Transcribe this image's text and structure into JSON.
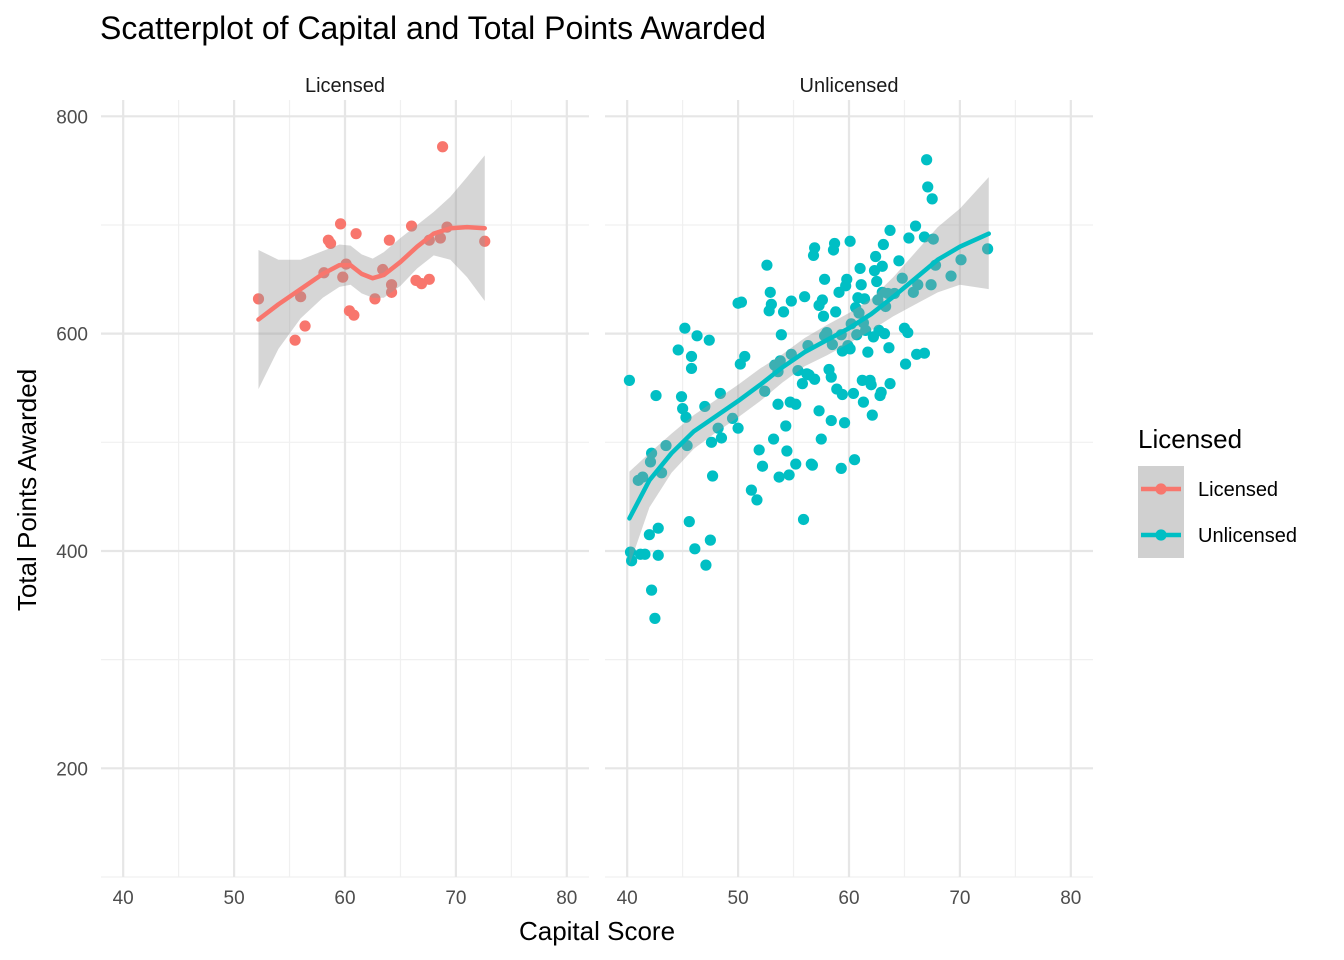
{
  "chart_data": {
    "type": "scatter",
    "title": "Scatterplot of Capital and Total Points Awarded",
    "xlabel": "Capital Score",
    "ylabel": "Total Points Awarded",
    "xlim": [
      38,
      82
    ],
    "ylim": [
      100,
      815
    ],
    "x_ticks": [
      40,
      50,
      60,
      70,
      80
    ],
    "y_ticks": [
      200,
      400,
      600,
      800
    ],
    "grid": true,
    "legend": {
      "title": "Licensed",
      "position": "right",
      "entries": [
        {
          "label": "Licensed",
          "color": "#F8766D"
        },
        {
          "label": "Unlicensed",
          "color": "#00BFC4"
        }
      ]
    },
    "facets": [
      {
        "label": "Licensed",
        "color": "#F8766D",
        "points": [
          [
            52.2,
            632
          ],
          [
            55.5,
            594
          ],
          [
            56.0,
            634
          ],
          [
            56.4,
            607
          ],
          [
            58.1,
            656
          ],
          [
            58.5,
            686
          ],
          [
            58.7,
            683
          ],
          [
            59.6,
            701
          ],
          [
            59.8,
            652
          ],
          [
            60.1,
            664
          ],
          [
            60.4,
            621
          ],
          [
            60.8,
            617
          ],
          [
            61.0,
            692
          ],
          [
            62.7,
            632
          ],
          [
            63.4,
            659
          ],
          [
            64.0,
            686
          ],
          [
            64.2,
            645
          ],
          [
            64.2,
            638
          ],
          [
            66.0,
            699
          ],
          [
            66.4,
            649
          ],
          [
            66.9,
            646
          ],
          [
            67.6,
            650
          ],
          [
            67.6,
            686
          ],
          [
            68.6,
            688
          ],
          [
            68.8,
            772
          ],
          [
            69.2,
            698
          ],
          [
            72.6,
            685
          ]
        ],
        "smooth": [
          [
            52.2,
            613
          ],
          [
            54,
            627
          ],
          [
            56,
            641
          ],
          [
            58,
            655
          ],
          [
            59.5,
            663
          ],
          [
            60.5,
            663
          ],
          [
            61.5,
            655
          ],
          [
            62.5,
            651
          ],
          [
            63.5,
            654
          ],
          [
            65,
            666
          ],
          [
            66.5,
            680
          ],
          [
            68,
            692
          ],
          [
            69.5,
            697
          ],
          [
            71,
            698
          ],
          [
            72.6,
            697
          ]
        ],
        "ci_upper": [
          [
            52.2,
            677
          ],
          [
            54,
            668
          ],
          [
            56,
            668
          ],
          [
            58,
            676
          ],
          [
            59.5,
            682
          ],
          [
            60.5,
            681
          ],
          [
            61.5,
            673
          ],
          [
            62.5,
            669
          ],
          [
            63.5,
            675
          ],
          [
            65,
            688
          ],
          [
            66.5,
            700
          ],
          [
            68,
            712
          ],
          [
            69.5,
            726
          ],
          [
            71,
            744
          ],
          [
            72.6,
            764
          ]
        ],
        "ci_lower": [
          [
            52.2,
            549
          ],
          [
            54,
            586
          ],
          [
            56,
            614
          ],
          [
            58,
            633
          ],
          [
            59.5,
            643
          ],
          [
            60.5,
            645
          ],
          [
            61.5,
            637
          ],
          [
            62.5,
            633
          ],
          [
            63.5,
            633
          ],
          [
            65,
            644
          ],
          [
            66.5,
            660
          ],
          [
            68,
            672
          ],
          [
            69.5,
            668
          ],
          [
            71,
            652
          ],
          [
            72.6,
            630
          ]
        ]
      },
      {
        "label": "Unlicensed",
        "color": "#00BFC4",
        "points": [
          [
            40.2,
            557
          ],
          [
            40.3,
            399
          ],
          [
            40.4,
            391
          ],
          [
            41,
            465
          ],
          [
            41.2,
            397
          ],
          [
            41.6,
            397
          ],
          [
            41.4,
            468
          ],
          [
            42,
            415
          ],
          [
            42.1,
            482
          ],
          [
            42.2,
            490
          ],
          [
            42.2,
            364
          ],
          [
            42.5,
            338
          ],
          [
            42.6,
            543
          ],
          [
            42.8,
            421
          ],
          [
            42.8,
            396
          ],
          [
            43.1,
            472
          ],
          [
            43.5,
            497
          ],
          [
            44.6,
            585
          ],
          [
            44.9,
            542
          ],
          [
            45.0,
            531
          ],
          [
            45.2,
            605
          ],
          [
            45.3,
            523
          ],
          [
            45.4,
            497
          ],
          [
            45.6,
            427
          ],
          [
            45.8,
            579
          ],
          [
            45.8,
            568
          ],
          [
            46.1,
            402
          ],
          [
            46.3,
            598
          ],
          [
            47.0,
            533
          ],
          [
            47.1,
            387
          ],
          [
            47.4,
            594
          ],
          [
            47.5,
            410
          ],
          [
            47.6,
            500
          ],
          [
            47.7,
            469
          ],
          [
            48.2,
            513
          ],
          [
            48.4,
            545
          ],
          [
            48.5,
            504
          ],
          [
            49.5,
            522
          ],
          [
            50.0,
            513
          ],
          [
            50.2,
            572
          ],
          [
            50.3,
            629
          ],
          [
            50.6,
            579
          ],
          [
            51.2,
            456
          ],
          [
            51.7,
            447
          ],
          [
            51.9,
            493
          ],
          [
            52.2,
            478
          ],
          [
            52.4,
            547
          ],
          [
            52.6,
            663
          ],
          [
            52.8,
            621
          ],
          [
            52.9,
            638
          ],
          [
            53.0,
            627
          ],
          [
            53.2,
            503
          ],
          [
            53.3,
            571
          ],
          [
            53.6,
            565
          ],
          [
            53.6,
            535
          ],
          [
            53.7,
            468
          ],
          [
            53.8,
            575
          ],
          [
            53.9,
            599
          ],
          [
            54.1,
            620
          ],
          [
            54.3,
            515
          ],
          [
            54.4,
            492
          ],
          [
            54.6,
            470
          ],
          [
            54.7,
            537
          ],
          [
            54.8,
            630
          ],
          [
            54.8,
            581
          ],
          [
            55.2,
            535
          ],
          [
            55.4,
            566
          ],
          [
            55.8,
            554
          ],
          [
            55.9,
            429
          ],
          [
            56.0,
            634
          ],
          [
            56.2,
            563
          ],
          [
            56.3,
            589
          ],
          [
            56.4,
            562
          ],
          [
            56.6,
            480
          ],
          [
            56.7,
            479
          ],
          [
            56.8,
            672
          ],
          [
            56.9,
            679
          ],
          [
            56.9,
            558
          ],
          [
            57.3,
            529
          ],
          [
            57.3,
            626
          ],
          [
            57.5,
            503
          ],
          [
            57.6,
            631
          ],
          [
            57.7,
            616
          ],
          [
            57.8,
            598
          ],
          [
            57.8,
            650
          ],
          [
            58.0,
            601
          ],
          [
            58.2,
            567
          ],
          [
            58.4,
            520
          ],
          [
            58.4,
            560
          ],
          [
            58.5,
            590
          ],
          [
            58.6,
            677
          ],
          [
            58.7,
            683
          ],
          [
            58.8,
            620
          ],
          [
            58.9,
            549
          ],
          [
            59.1,
            638
          ],
          [
            59.3,
            599
          ],
          [
            59.3,
            476
          ],
          [
            59.4,
            584
          ],
          [
            59.4,
            544
          ],
          [
            59.6,
            518
          ],
          [
            59.7,
            644
          ],
          [
            59.8,
            650
          ],
          [
            59.9,
            589
          ],
          [
            60.1,
            586
          ],
          [
            60.1,
            685
          ],
          [
            60.2,
            609
          ],
          [
            60.4,
            545
          ],
          [
            60.5,
            484
          ],
          [
            60.6,
            624
          ],
          [
            60.7,
            599
          ],
          [
            60.8,
            633
          ],
          [
            60.9,
            619
          ],
          [
            61.0,
            660
          ],
          [
            61.1,
            645
          ],
          [
            61.2,
            557
          ],
          [
            61.3,
            537
          ],
          [
            61.3,
            610
          ],
          [
            61.4,
            632
          ],
          [
            61.5,
            603
          ],
          [
            61.7,
            583
          ],
          [
            61.9,
            557
          ],
          [
            62.0,
            553
          ],
          [
            62.1,
            525
          ],
          [
            62.2,
            597
          ],
          [
            62.3,
            658
          ],
          [
            62.4,
            671
          ],
          [
            62.5,
            648
          ],
          [
            62.6,
            631
          ],
          [
            62.7,
            603
          ],
          [
            62.8,
            543
          ],
          [
            62.9,
            546
          ],
          [
            63.0,
            638
          ],
          [
            63.0,
            662
          ],
          [
            63.1,
            682
          ],
          [
            63.2,
            600
          ],
          [
            63.3,
            625
          ],
          [
            63.5,
            637
          ],
          [
            63.6,
            587
          ],
          [
            63.7,
            554
          ],
          [
            63.7,
            695
          ],
          [
            64.1,
            637
          ],
          [
            64.5,
            667
          ],
          [
            64.8,
            651
          ],
          [
            65.0,
            605
          ],
          [
            65.1,
            572
          ],
          [
            65.3,
            601
          ],
          [
            65.4,
            688
          ],
          [
            65.8,
            638
          ],
          [
            66.0,
            699
          ],
          [
            66.1,
            581
          ],
          [
            66.2,
            645
          ],
          [
            66.8,
            582
          ],
          [
            66.8,
            689
          ],
          [
            67.1,
            735
          ],
          [
            67.4,
            645
          ],
          [
            67.5,
            724
          ],
          [
            67.6,
            687
          ],
          [
            67.8,
            663
          ],
          [
            69.2,
            653
          ],
          [
            70.1,
            668
          ],
          [
            72.5,
            678
          ],
          [
            67.0,
            760
          ],
          [
            55.2,
            480
          ],
          [
            50.0,
            628
          ]
        ],
        "smooth": [
          [
            40.2,
            430
          ],
          [
            42,
            465
          ],
          [
            44,
            490
          ],
          [
            46,
            510
          ],
          [
            48,
            524
          ],
          [
            50,
            538
          ],
          [
            52,
            553
          ],
          [
            54,
            569
          ],
          [
            56,
            583
          ],
          [
            58,
            594
          ],
          [
            60,
            605
          ],
          [
            62,
            618
          ],
          [
            64,
            634
          ],
          [
            66,
            651
          ],
          [
            68,
            668
          ],
          [
            70,
            680
          ],
          [
            72.6,
            692
          ]
        ],
        "ci_upper": [
          [
            40.2,
            473
          ],
          [
            42,
            490
          ],
          [
            44,
            508
          ],
          [
            46,
            525
          ],
          [
            48,
            539
          ],
          [
            50,
            553
          ],
          [
            52,
            568
          ],
          [
            54,
            581
          ],
          [
            56,
            596
          ],
          [
            58,
            608
          ],
          [
            60,
            619
          ],
          [
            62,
            632
          ],
          [
            64,
            652
          ],
          [
            66,
            675
          ],
          [
            68,
            698
          ],
          [
            70,
            715
          ],
          [
            72.6,
            744
          ]
        ],
        "ci_lower": [
          [
            40.2,
            387
          ],
          [
            42,
            440
          ],
          [
            44,
            472
          ],
          [
            46,
            494
          ],
          [
            48,
            509
          ],
          [
            50,
            523
          ],
          [
            52,
            538
          ],
          [
            54,
            555
          ],
          [
            56,
            570
          ],
          [
            58,
            580
          ],
          [
            60,
            591
          ],
          [
            62,
            603
          ],
          [
            64,
            616
          ],
          [
            66,
            627
          ],
          [
            68,
            638
          ],
          [
            70,
            645
          ],
          [
            72.6,
            641
          ]
        ]
      }
    ]
  }
}
